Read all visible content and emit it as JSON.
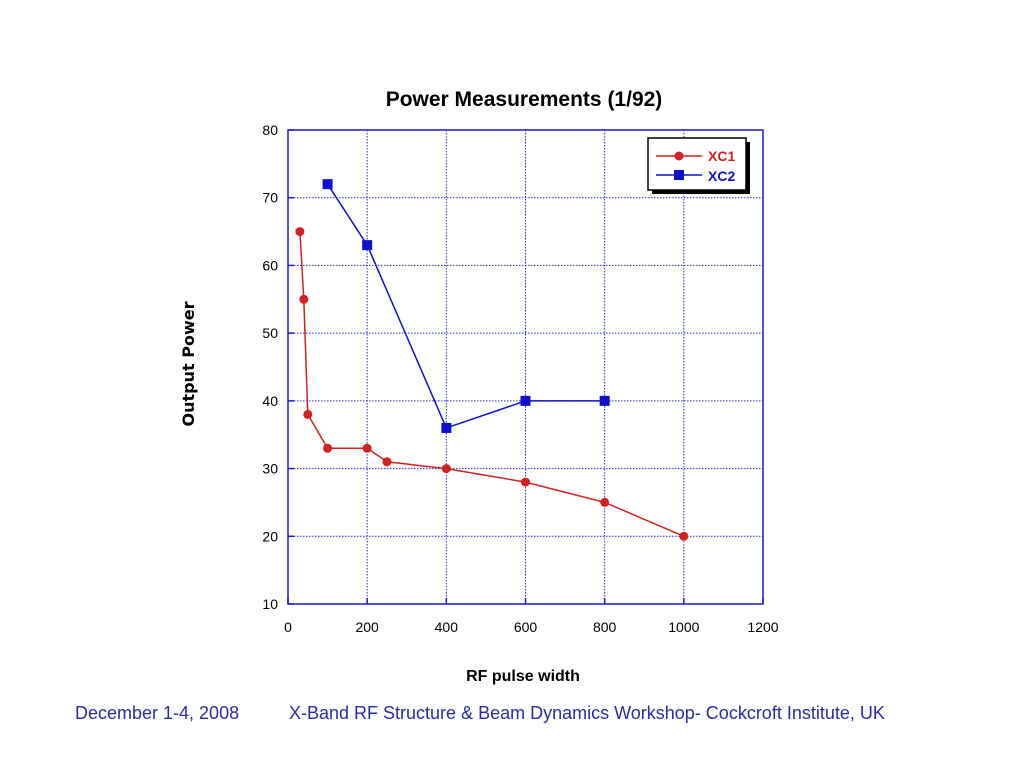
{
  "chart_data": {
    "type": "line",
    "title": "Power Measurements (1/92)",
    "xlabel": "RF pulse width",
    "ylabel": "Output Power",
    "xlim": [
      0,
      1200
    ],
    "ylim": [
      10,
      80
    ],
    "xticks": [
      0,
      200,
      400,
      600,
      800,
      1000,
      1200
    ],
    "yticks": [
      10,
      20,
      30,
      40,
      50,
      60,
      70,
      80
    ],
    "grid": true,
    "legend_position": "top-right",
    "series": [
      {
        "name": "XC1",
        "color": "#d42020",
        "marker": "circle",
        "x": [
          30,
          40,
          50,
          100,
          200,
          250,
          400,
          600,
          800,
          1000
        ],
        "y": [
          65,
          55,
          38,
          33,
          33,
          31,
          30,
          28,
          25,
          20
        ]
      },
      {
        "name": "XC2",
        "color": "#1010cc",
        "marker": "square",
        "x": [
          100,
          200,
          400,
          600,
          800
        ],
        "y": [
          72,
          63,
          36,
          40,
          40
        ]
      }
    ]
  },
  "footer": {
    "date": "December 1-4, 2008",
    "event": "X-Band RF Structure & Beam Dynamics Workshop- Cockcroft Institute, UK"
  },
  "colors": {
    "grid": "#2a2ad8",
    "axis": "#1a1acc",
    "footer_text": "#2b2baa"
  }
}
